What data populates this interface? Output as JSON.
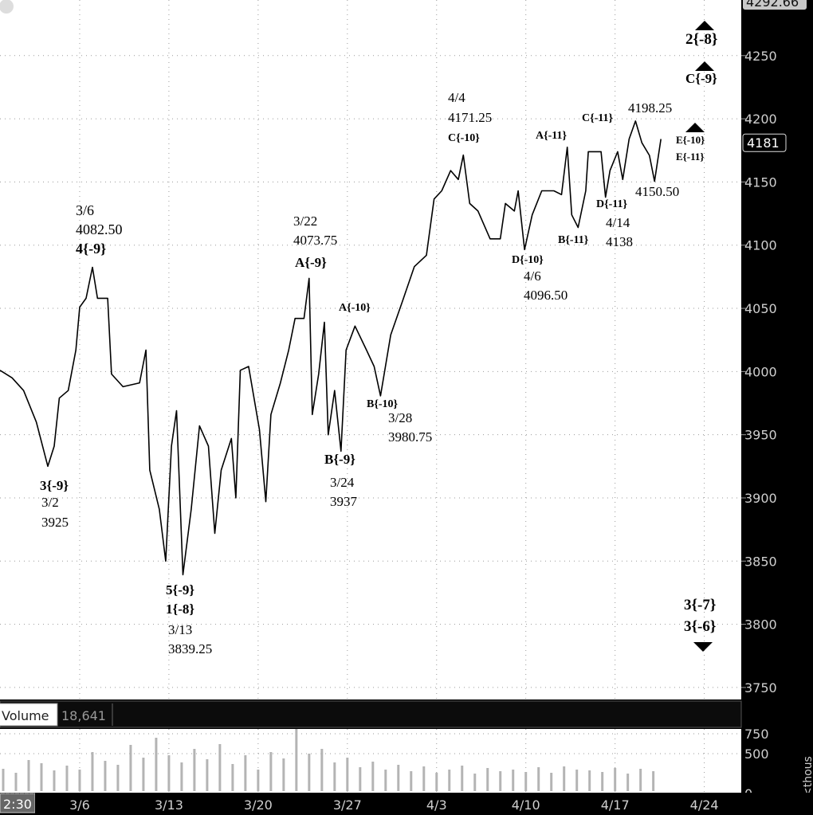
{
  "chart_data": {
    "type": "line",
    "x": [
      -0.25,
      0.7,
      1.6,
      2.6,
      3.5,
      4,
      4.4,
      5.1,
      5.7,
      6,
      6.5,
      7,
      7.4,
      8.2,
      8.5,
      9.4,
      10.7,
      11.2,
      11.5,
      12.25,
      12.75,
      13.2,
      13.6,
      14.1,
      14.75,
      15.4,
      16.1,
      16.6,
      17.1,
      17.9,
      18.25,
      18.6,
      19.25,
      20.1,
      20.6,
      21,
      21.75,
      22.4,
      22.9,
      23.6,
      24,
      24.25,
      24.75,
      25.2,
      25.5,
      26,
      26.5,
      26.9,
      27.6,
      28.5,
      29.1,
      29.6,
      30.4,
      31.3,
      32.25,
      33.2,
      33.8,
      34.4,
      35.1,
      35.7,
      36.1,
      36.6,
      37.25,
      38.2,
      39,
      39.4,
      40.1,
      40.4,
      40.9,
      41.5,
      42.25,
      43.2,
      43.8,
      44.25,
      44.6,
      45.1,
      45.7,
      45.9,
      46.3,
      46.9,
      47.25,
      47.6,
      48.2,
      48.6,
      49.1,
      49.6,
      50.1,
      50.7,
      51.1,
      51.6
    ],
    "values": [
      4001,
      3995,
      3985,
      3960,
      3925,
      3941,
      3979,
      3985,
      4017,
      4051,
      4058,
      4082.5,
      4058,
      4058,
      3998,
      3988,
      3991,
      4017,
      3922,
      3891,
      3850,
      3941,
      3969,
      3839.25,
      3891,
      3957,
      3941,
      3872,
      3922,
      3947,
      3900,
      4001,
      4004,
      3954,
      3897,
      3966,
      3991,
      4017,
      4042,
      4042,
      4073.75,
      3966,
      3998,
      4039,
      3950,
      3985,
      3937,
      4017,
      4036,
      4017,
      4004,
      3980.75,
      4029,
      4055,
      4083,
      4092,
      4136.5,
      4143,
      4159,
      4152,
      4171.25,
      4133,
      4127,
      4105,
      4105,
      4133,
      4127,
      4143,
      4096.5,
      4124,
      4143,
      4143,
      4140,
      4177.5,
      4124,
      4114,
      4143,
      4174,
      4174,
      4174,
      4138,
      4159,
      4174,
      4152,
      4184,
      4198.25,
      4181,
      4171,
      4150.5,
      4184
    ],
    "color": "#000000",
    "xlim": [
      -0.25,
      57.9
    ],
    "xticks": [
      {
        "value": 6,
        "label": "3/6"
      },
      {
        "value": 13,
        "label": "3/13"
      },
      {
        "value": 20,
        "label": "3/20"
      },
      {
        "value": 27,
        "label": "3/27"
      },
      {
        "value": 34,
        "label": "4/3"
      },
      {
        "value": 41,
        "label": "4/10"
      },
      {
        "value": 48,
        "label": "4/17"
      },
      {
        "value": 55,
        "label": "4/24"
      }
    ],
    "ylim": [
      3740.5,
      4294
    ],
    "yticks": [
      3750,
      3800,
      3850,
      3900,
      3950,
      4000,
      4050,
      4100,
      4150,
      4200,
      4250
    ],
    "grid": true,
    "high_label": 4292.66,
    "last_price": 4181,
    "cursor_time": "2:30",
    "annotations": [
      "3/6",
      "4082.50",
      "4{-9}",
      "3{-9}",
      "3/2",
      "3925",
      "5{-9}",
      "1{-8}",
      "3/13",
      "3839.25",
      "3/22",
      "4073.75",
      "A{-9}",
      "A{-10}",
      "B{-10}",
      "3/28",
      "3980.75",
      "B{-9}",
      "3/24",
      "3937",
      "4/4",
      "4171.25",
      "C{-10}",
      "A{-11}",
      "D{-10}",
      "4/6",
      "4096.50",
      "B{-11}",
      "C{-11}",
      "4198.25",
      "D{-11}",
      "4/14",
      "4138",
      "4150.50",
      "E{-10}",
      "E{-11}",
      "2{-8}",
      "C{-9}",
      "3{-7}",
      "3{-6}"
    ],
    "volume": {
      "type": "bar",
      "title": "Volume",
      "last_value": {
        "value": 18641,
        "label": "18,641"
      },
      "x": [
        0,
        1,
        2,
        3,
        4,
        5,
        6,
        7,
        8,
        9,
        10,
        11,
        12,
        13,
        14,
        15,
        16,
        17,
        18,
        19,
        20,
        21,
        22,
        23,
        24,
        25,
        26,
        27,
        28,
        29,
        30,
        31,
        32,
        33,
        34,
        35,
        36,
        37,
        38,
        39,
        40,
        41,
        42,
        43,
        44,
        45,
        46,
        47,
        48,
        49,
        50,
        51
      ],
      "values": [
        310,
        260,
        420,
        380,
        290,
        350,
        300,
        520,
        410,
        360,
        610,
        450,
        700,
        480,
        390,
        560,
        430,
        620,
        370,
        480,
        300,
        520,
        440,
        820,
        500,
        560,
        390,
        450,
        330,
        400,
        300,
        360,
        280,
        340,
        260,
        300,
        350,
        250,
        320,
        280,
        300,
        270,
        330,
        260,
        340,
        300,
        290,
        270,
        320,
        250,
        310,
        280
      ],
      "color": "#b4b4b4",
      "ylim": [
        0,
        810
      ],
      "yticks": [
        0,
        500,
        750
      ],
      "axis_label": "<thous"
    }
  }
}
